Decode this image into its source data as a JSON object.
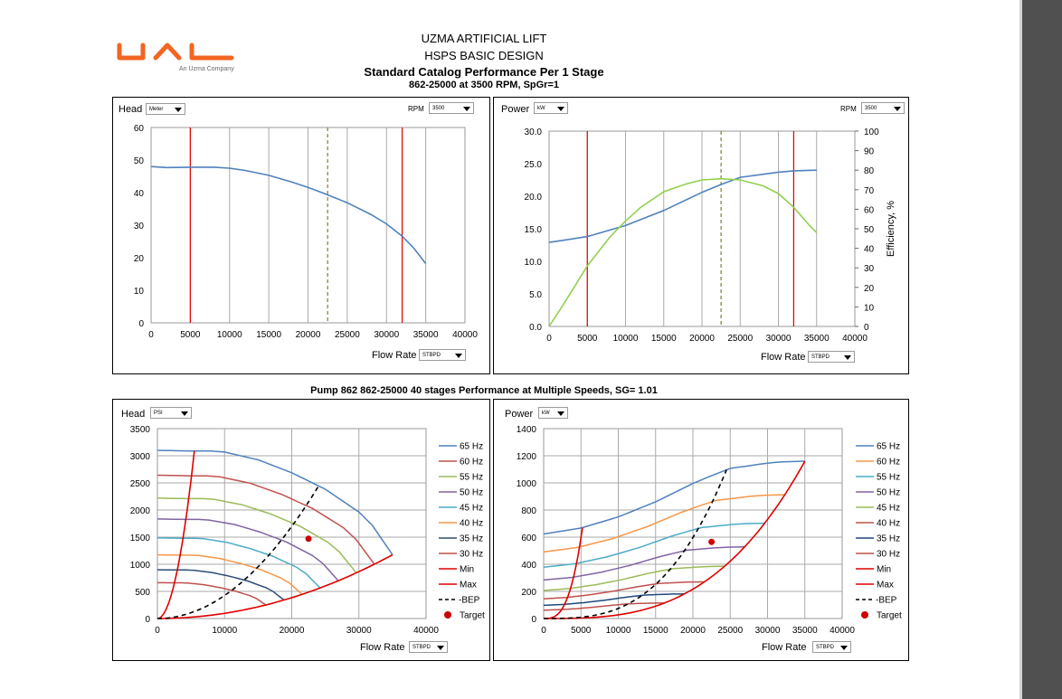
{
  "header": {
    "logo_text": "UAL",
    "logo_sub": "An Uzma Company",
    "line1": "UZMA ARTIFICIAL LIFT",
    "line2": "HSPS BASIC DESIGN",
    "line3": "Standard Catalog Performance Per 1 Stage",
    "line4": "862-25000 at 3500 RPM, SpGr=1"
  },
  "middle_title": "Pump  862 862-25000 40 stages Performance at  Multiple Speeds, SG= 1.01",
  "colors": {
    "grid": "#aaaaaa",
    "curve_blue": "#4f81bd",
    "curve_green": "#92d050",
    "red": "#e00000",
    "bep": "#000000",
    "logo": "#f26522"
  },
  "controls": {
    "tl": {
      "label": "Head",
      "unit": "Meter",
      "rpm_label": "RPM",
      "rpm": "3500",
      "x_label": "Flow Rate",
      "x_unit": "STBPD"
    },
    "tr": {
      "label": "Power",
      "unit": "kW",
      "rpm_label": "RPM",
      "rpm": "3500",
      "x_label": "Flow Rate",
      "x_unit": "STBPD",
      "y2_label": "Efficiency, %"
    },
    "bl": {
      "label": "Head",
      "unit": "PSI",
      "x_label": "Flow Rate",
      "x_unit": "STBPD"
    },
    "br": {
      "label": "Power",
      "unit": "kW",
      "x_label": "Flow Rate",
      "x_unit": "STBPD"
    }
  },
  "chart_data": [
    {
      "id": "tl",
      "type": "line",
      "ylabel": "Head",
      "xlabel": "Flow Rate",
      "xlim": [
        0,
        40000
      ],
      "ylim": [
        0,
        60
      ],
      "xticks": [
        0,
        5000,
        10000,
        15000,
        20000,
        25000,
        30000,
        35000,
        40000
      ],
      "yticks": [
        0,
        10,
        20,
        30,
        40,
        50,
        60
      ],
      "series": [
        {
          "kind": "head",
          "x": [
            0,
            2000,
            5000,
            8000,
            10000,
            12000,
            15000,
            18000,
            20000,
            22000,
            25000,
            28000,
            30000,
            32000,
            33500,
            35000
          ],
          "y": [
            48,
            47.7,
            47.8,
            47.8,
            47.5,
            46.8,
            45.3,
            43.2,
            41.6,
            39.8,
            36.9,
            33.3,
            30.4,
            26.6,
            22.9,
            18.2
          ]
        }
      ],
      "vlines": [
        {
          "x": 5000,
          "style": "red"
        },
        {
          "x": 22500,
          "style": "dashed"
        },
        {
          "x": 32000,
          "style": "red"
        }
      ]
    },
    {
      "id": "tr",
      "type": "line",
      "ylabel": "Power",
      "y2label": "Efficiency, %",
      "xlabel": "Flow Rate",
      "xlim": [
        0,
        40000
      ],
      "ylim": [
        0,
        30
      ],
      "y2lim": [
        0,
        100
      ],
      "xticks": [
        0,
        5000,
        10000,
        15000,
        20000,
        25000,
        30000,
        35000,
        40000
      ],
      "yticks": [
        0.0,
        5.0,
        10.0,
        15.0,
        20.0,
        25.0,
        30.0
      ],
      "y2ticks": [
        0,
        10,
        20,
        30,
        40,
        50,
        60,
        70,
        80,
        90,
        100
      ],
      "series": [
        {
          "kind": "power",
          "axis": "y",
          "x": [
            0,
            5000,
            10000,
            15000,
            20000,
            22500,
            25000,
            30000,
            32000,
            35000
          ],
          "y": [
            12.9,
            13.8,
            15.5,
            17.8,
            20.6,
            21.8,
            22.9,
            23.7,
            23.9,
            24.0
          ]
        },
        {
          "kind": "efficiency",
          "axis": "y2",
          "x": [
            0,
            2000,
            5000,
            8000,
            10000,
            12000,
            15000,
            18000,
            20000,
            22500,
            25000,
            28000,
            30000,
            32000,
            34000,
            35000
          ],
          "y": [
            0,
            12,
            31,
            46,
            54,
            61,
            69,
            73,
            75,
            75.6,
            75,
            72,
            68,
            61,
            52,
            48
          ]
        }
      ],
      "vlines": [
        {
          "x": 5000,
          "style": "red"
        },
        {
          "x": 22500,
          "style": "dashed"
        },
        {
          "x": 32000,
          "style": "red"
        }
      ]
    },
    {
      "id": "bl",
      "type": "line",
      "ylabel": "Head",
      "xlabel": "Flow Rate",
      "xlim": [
        0,
        40000
      ],
      "ylim": [
        0,
        3500
      ],
      "xticks": [
        0,
        10000,
        20000,
        30000,
        40000
      ],
      "yticks": [
        0,
        500,
        1000,
        1500,
        2000,
        2500,
        3000,
        3500
      ],
      "series": [
        {
          "name": "65 Hz",
          "color": "#4f81bd",
          "hz": 65
        },
        {
          "name": "60 Hz",
          "color": "#c0504d",
          "hz": 60
        },
        {
          "name": "55 Hz",
          "color": "#9bbb59",
          "hz": 55
        },
        {
          "name": "50 Hz",
          "color": "#8064a2",
          "hz": 50
        },
        {
          "name": "45 Hz",
          "color": "#4bacc6",
          "hz": 45
        },
        {
          "name": "40 Hz",
          "color": "#f79646",
          "hz": 40
        },
        {
          "name": "35 Hz",
          "color": "#2c4d75",
          "hz": 35
        },
        {
          "name": "30 Hz",
          "color": "#c0504d",
          "hz": 30
        },
        {
          "name": "Min",
          "color": "#e00000"
        },
        {
          "name": "Max",
          "color": "#e00000"
        },
        {
          "name": "BEP",
          "color": "#000000",
          "dashed": true
        },
        {
          "name": "Target",
          "color": "#cc0000",
          "marker": true
        }
      ],
      "base_head": {
        "x": [
          0,
          5000,
          8000,
          10000,
          15000,
          20000,
          25000,
          30000,
          32000,
          35000
        ],
        "y": [
          48,
          47.8,
          47.8,
          47.5,
          45.3,
          41.6,
          36.9,
          30.4,
          26.6,
          18.2
        ]
      },
      "target": {
        "x": 22500,
        "y": 1470
      }
    },
    {
      "id": "br",
      "type": "line",
      "ylabel": "Power",
      "xlabel": "Flow Rate",
      "xlim": [
        0,
        40000
      ],
      "ylim": [
        0,
        1400
      ],
      "xticks": [
        0,
        5000,
        10000,
        15000,
        20000,
        25000,
        30000,
        35000,
        40000
      ],
      "yticks": [
        0,
        200,
        400,
        600,
        800,
        1000,
        1200,
        1400
      ],
      "series": [
        {
          "name": "65 Hz",
          "color": "#4f81bd",
          "hz": 65
        },
        {
          "name": "60 Hz",
          "color": "#f79646",
          "hz": 60
        },
        {
          "name": "55 Hz",
          "color": "#4bacc6",
          "hz": 55
        },
        {
          "name": "50 Hz",
          "color": "#8064a2",
          "hz": 50
        },
        {
          "name": "45 Hz",
          "color": "#9bbb59",
          "hz": 45
        },
        {
          "name": "40 Hz",
          "color": "#c0504d",
          "hz": 40
        },
        {
          "name": "35 Hz",
          "color": "#1f497d",
          "hz": 35
        },
        {
          "name": "30 Hz",
          "color": "#c0504d",
          "hz": 30
        },
        {
          "name": "Min",
          "color": "#e00000"
        },
        {
          "name": "Max",
          "color": "#e00000"
        },
        {
          "name": "BEP",
          "color": "#000000",
          "dashed": true
        },
        {
          "name": "Target",
          "color": "#cc0000",
          "marker": true
        }
      ],
      "base_power": {
        "x": [
          0,
          5000,
          10000,
          15000,
          20000,
          22500,
          25000,
          30000,
          32000,
          35000
        ],
        "y": [
          12.9,
          13.8,
          15.5,
          17.8,
          20.6,
          21.8,
          22.9,
          23.7,
          23.9,
          24.0
        ]
      },
      "target": {
        "x": 22500,
        "y": 565
      }
    }
  ]
}
